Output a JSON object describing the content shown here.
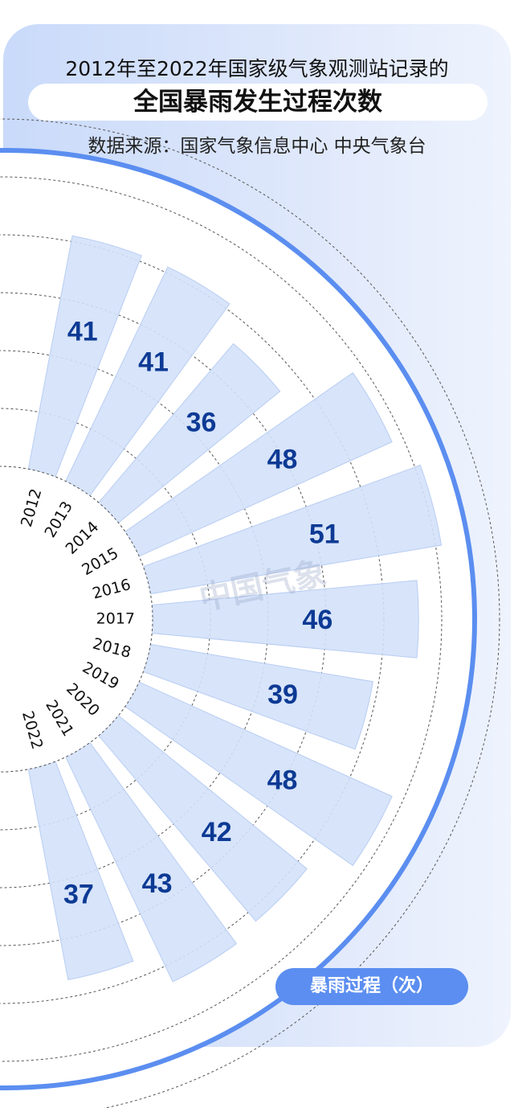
{
  "header": {
    "title_line1": "2012年至2022年国家级气象观测站记录的",
    "title_line2": "全国暴雨发生过程次数",
    "source": "数据来源：国家气象信息中心  中央气象台"
  },
  "watermark": "中国气象",
  "colors": {
    "bar_fill": "#d3e1fa",
    "bar_stroke": "#b9cdf2",
    "value_text": "#0d3a94",
    "accent": "#5b8ef0"
  },
  "chart_data": {
    "type": "bar",
    "layout": "radial semicircle",
    "categories": [
      "2012",
      "2013",
      "2014",
      "2015",
      "2016",
      "2017",
      "2018",
      "2019",
      "2020",
      "2021",
      "2022"
    ],
    "values": [
      41,
      41,
      36,
      48,
      51,
      46,
      39,
      48,
      42,
      43,
      37
    ],
    "legend": "暴雨过程（次）",
    "legend_placement": "bottom-right",
    "grid": true
  }
}
